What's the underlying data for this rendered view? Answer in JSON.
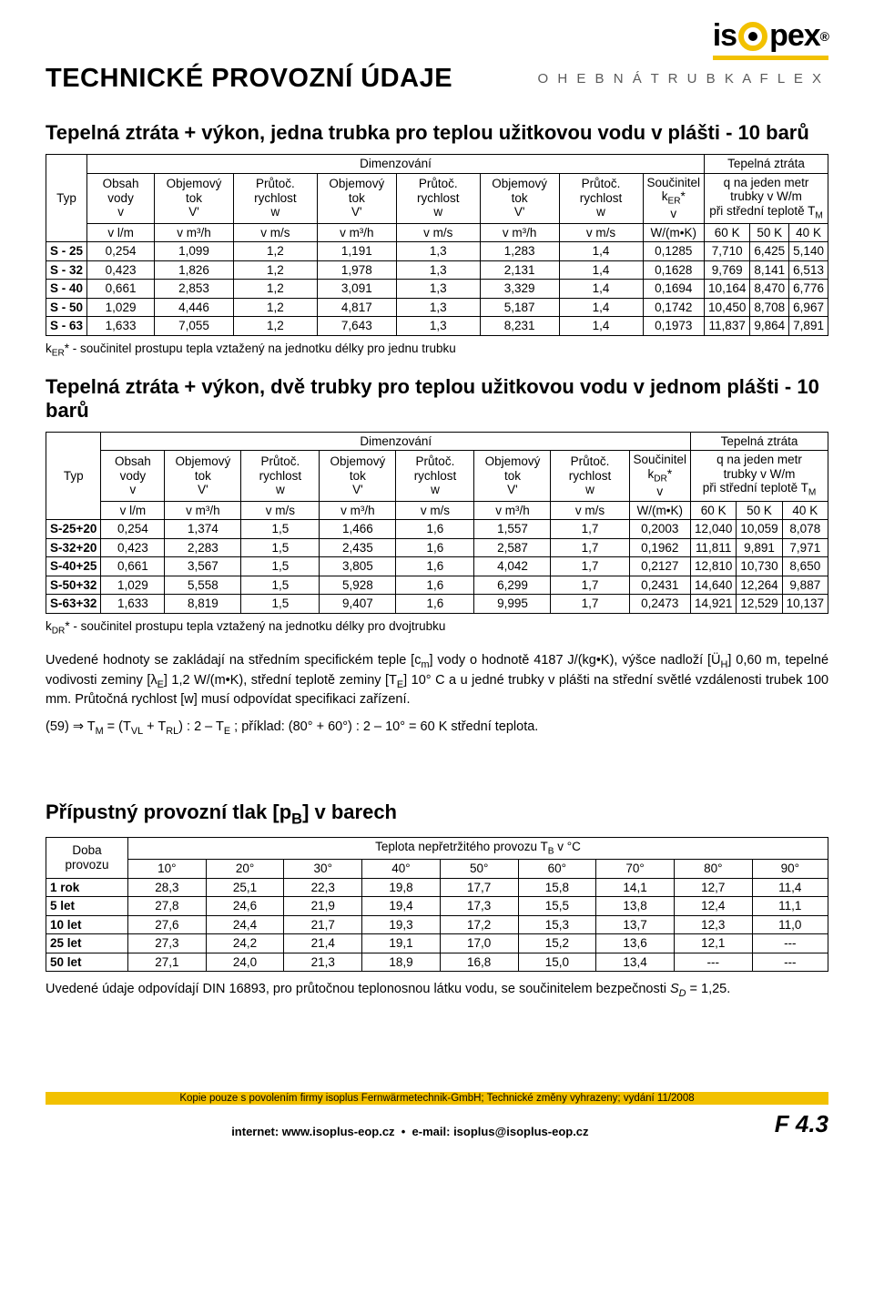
{
  "logo": {
    "pre": "is",
    "post": "pex",
    "reg": "®"
  },
  "subtitle": "O H E B N Á   T R U B K A   F L E X",
  "h1": "TECHNICKÉ  PROVOZNÍ  ÚDAJE",
  "sec1_title": "Tepelná ztráta + výkon, jedna trubka pro teplou užitkovou vodu v plášti - 10 barů",
  "sec2_title": "Tepelná ztráta + výkon, dvě trubky pro teplou užitkovou vodu v jednom plášti - 10 barů",
  "sec3_title_html": "Přípustný provozní tlak [p<sub>B</sub>] v barech",
  "hdr": {
    "typ": "Typ",
    "dimenz": "Dimenzování",
    "tepztr": "Tepelná ztráta",
    "obsahvody": "Obsah vody",
    "v": "v",
    "vlm": "v l/m",
    "objtok": "Objemový tok",
    "Vp": "V'",
    "vm3h": "v m³/h",
    "prurychl": "Průtoč. rychlost",
    "w": "w",
    "vms": "v m/s",
    "soucin": "Součinitel",
    "kER": "k<sub>ER</sub>*",
    "kDR": "k<sub>DR</sub>*",
    "vnu": "v",
    "wmk": "W/(m•K)",
    "q_html": "q na jeden metr<br>trubky v W/m<br>při střední teplotě T<sub>M</sub>",
    "k60": "60 K",
    "k50": "50 K",
    "k40": "40 K"
  },
  "t1_rows": [
    [
      "S - 25",
      "0,254",
      "1,099",
      "1,2",
      "1,191",
      "1,3",
      "1,283",
      "1,4",
      "0,1285",
      "7,710",
      "6,425",
      "5,140"
    ],
    [
      "S - 32",
      "0,423",
      "1,826",
      "1,2",
      "1,978",
      "1,3",
      "2,131",
      "1,4",
      "0,1628",
      "9,769",
      "8,141",
      "6,513"
    ],
    [
      "S - 40",
      "0,661",
      "2,853",
      "1,2",
      "3,091",
      "1,3",
      "3,329",
      "1,4",
      "0,1694",
      "10,164",
      "8,470",
      "6,776"
    ],
    [
      "S - 50",
      "1,029",
      "4,446",
      "1,2",
      "4,817",
      "1,3",
      "5,187",
      "1,4",
      "0,1742",
      "10,450",
      "8,708",
      "6,967"
    ],
    [
      "S - 63",
      "1,633",
      "7,055",
      "1,2",
      "7,643",
      "1,3",
      "8,231",
      "1,4",
      "0,1973",
      "11,837",
      "9,864",
      "7,891"
    ]
  ],
  "note1_html": "k<sub>ER</sub>* - součinitel prostupu tepla vztažený na jednotku délky pro jednu trubku",
  "t2_rows": [
    [
      "S-25+20",
      "0,254",
      "1,374",
      "1,5",
      "1,466",
      "1,6",
      "1,557",
      "1,7",
      "0,2003",
      "12,040",
      "10,059",
      "8,078"
    ],
    [
      "S-32+20",
      "0,423",
      "2,283",
      "1,5",
      "2,435",
      "1,6",
      "2,587",
      "1,7",
      "0,1962",
      "11,811",
      "9,891",
      "7,971"
    ],
    [
      "S-40+25",
      "0,661",
      "3,567",
      "1,5",
      "3,805",
      "1,6",
      "4,042",
      "1,7",
      "0,2127",
      "12,810",
      "10,730",
      "8,650"
    ],
    [
      "S-50+32",
      "1,029",
      "5,558",
      "1,5",
      "5,928",
      "1,6",
      "6,299",
      "1,7",
      "0,2431",
      "14,640",
      "12,264",
      "9,887"
    ],
    [
      "S-63+32",
      "1,633",
      "8,819",
      "1,5",
      "9,407",
      "1,6",
      "9,995",
      "1,7",
      "0,2473",
      "14,921",
      "12,529",
      "10,137"
    ]
  ],
  "note2_html": "k<sub>DR</sub>* - součinitel prostupu tepla vztažený na jednotku délky pro dvojtrubku",
  "para1_html": "Uvedené hodnoty se zakládají na středním specifickém teple [c<sub>m</sub>] vody o hodnotě 4187 J/(kg•K), výšce nadloží [Ü<sub>H</sub>] 0,60 m, tepelné vodivosti zeminy [λ<sub>E</sub>] 1,2 W/(m•K), střední teplotě zeminy [T<sub>E</sub>] 10° C a u jedné trubky v plášti na střední světlé vzdálenosti trubek 100 mm. Průtočná rychlost [w] musí odpovídat specifikaci zařízení.",
  "para2_html": "(59) ⇒ T<sub>M</sub> = (T<sub>VL</sub> + T<sub>RL</sub>) : 2 – T<sub>E</sub> ; příklad: (80° + 60°) : 2 – 10° = 60 K střední teplota.",
  "t3": {
    "doba": "Doba provozu",
    "tep_html": "Teplota nepřetržitého provozu T<sub>B</sub> v °C",
    "temps": [
      "10°",
      "20°",
      "30°",
      "40°",
      "50°",
      "60°",
      "70°",
      "80°",
      "90°"
    ],
    "rows": [
      [
        "1 rok",
        "28,3",
        "25,1",
        "22,3",
        "19,8",
        "17,7",
        "15,8",
        "14,1",
        "12,7",
        "11,4"
      ],
      [
        "5 let",
        "27,8",
        "24,6",
        "21,9",
        "19,4",
        "17,3",
        "15,5",
        "13,8",
        "12,4",
        "11,1"
      ],
      [
        "10 let",
        "27,6",
        "24,4",
        "21,7",
        "19,3",
        "17,2",
        "15,3",
        "13,7",
        "12,3",
        "11,0"
      ],
      [
        "25 let",
        "27,3",
        "24,2",
        "21,4",
        "19,1",
        "17,0",
        "15,2",
        "13,6",
        "12,1",
        "---"
      ],
      [
        "50 let",
        "27,1",
        "24,0",
        "21,3",
        "18,9",
        "16,8",
        "15,0",
        "13,4",
        "---",
        "---"
      ]
    ]
  },
  "para3_html": "Uvedené údaje odpovídají DIN 16893, pro průtočnou teplonosnou látku vodu, se součinitelem bezpečnosti <i>S<sub>D</sub></i> = 1,25.",
  "footer": {
    "line1": "Kopie pouze s povolením firmy isoplus Fernwärmetechnik-GmbH; Technické změny vyhrazeny; vydání 11/2008",
    "line2_html": "internet: www.isoplus-eop.cz &nbsp;•&nbsp; e-mail: isoplus@isoplus-eop.cz",
    "page": "F 4.3"
  }
}
